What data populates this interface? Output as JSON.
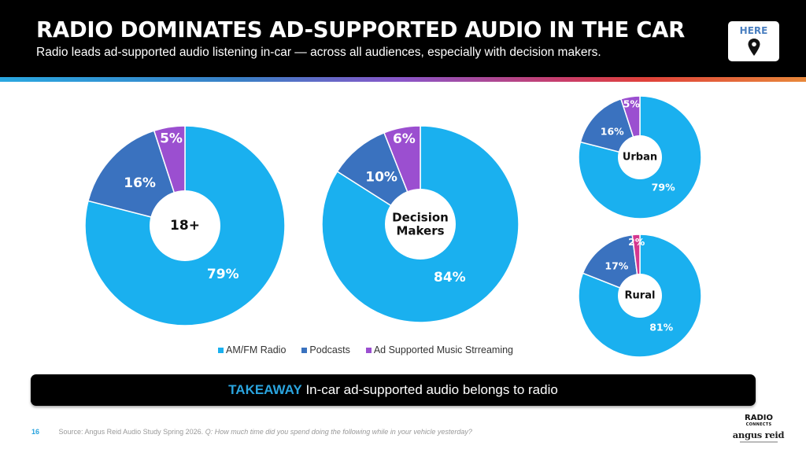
{
  "header": {
    "title": "RADIO DOMINATES AD-SUPPORTED AUDIO IN THE CAR",
    "subtitle": "Radio leads ad-supported audio listening in-car — across all audiences, especially with decision makers.",
    "badge_label": "HERE",
    "badge_icon": "map-pin-icon"
  },
  "colors": {
    "am_fm": "#1ab0ef",
    "podcasts": "#3a72bf",
    "streaming": "#9b4fd0",
    "streaming_rural": "#d5378f",
    "gradient": [
      "#2aa7e0",
      "#3a7fc6",
      "#8a55c8",
      "#c93d6a",
      "#e0413a",
      "#e8883a"
    ]
  },
  "chart_data": [
    {
      "type": "pie",
      "title": "18+",
      "categories": [
        "AM/FM Radio",
        "Podcasts",
        "Ad Supported Music Strreaming"
      ],
      "values": [
        79,
        16,
        5
      ],
      "labels": [
        "79%",
        "16%",
        "5%"
      ]
    },
    {
      "type": "pie",
      "title": "Decision Makers",
      "title_lines": [
        "Decision",
        "Makers"
      ],
      "categories": [
        "AM/FM Radio",
        "Podcasts",
        "Ad Supported Music Strreaming"
      ],
      "values": [
        84,
        10,
        6
      ],
      "labels": [
        "84%",
        "10%",
        "6%"
      ]
    },
    {
      "type": "pie",
      "title": "Urban",
      "categories": [
        "AM/FM Radio",
        "Podcasts",
        "Ad Supported Music Strreaming"
      ],
      "values": [
        79,
        16,
        5
      ],
      "labels": [
        "79%",
        "16%",
        "5%"
      ]
    },
    {
      "type": "pie",
      "title": "Rural",
      "categories": [
        "AM/FM Radio",
        "Podcasts",
        "Ad Supported Music Strreaming"
      ],
      "values": [
        81,
        17,
        2
      ],
      "labels": [
        "81%",
        "17%",
        "2%"
      ]
    }
  ],
  "legend": [
    {
      "label": "AM/FM Radio"
    },
    {
      "label": "Podcasts"
    },
    {
      "label": "Ad Supported Music Strreaming"
    }
  ],
  "takeaway": {
    "label": "TAKEAWAY",
    "text": "In-car ad-supported audio belongs to radio"
  },
  "footer": {
    "page_number": "16",
    "source": "Source:  Angus Reid Audio Study Spring 2026.",
    "question": "Q:  How much time did you spend doing the following while in your vehicle yesterday?"
  },
  "logos": {
    "radio_connects_top": "RADIO",
    "radio_connects_bottom": "CONNECTS",
    "angus_reid": "angus reid"
  }
}
